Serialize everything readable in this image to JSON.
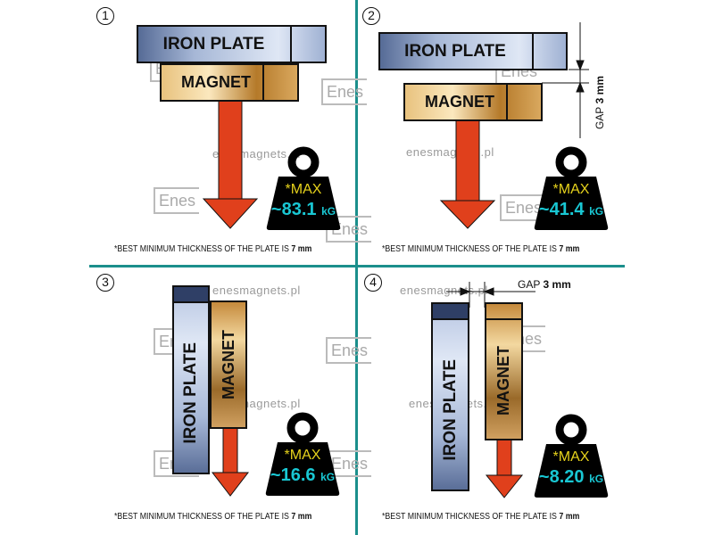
{
  "colors": {
    "divider": "#1b8f8c",
    "arrow": "#e0401c",
    "max_text": "#e6d21c",
    "value_text": "#19c7d3"
  },
  "watermark": {
    "url": "enesmagnets.pl",
    "logo": "Enes"
  },
  "panels": [
    {
      "number": "1",
      "iron_label": "IRON PLATE",
      "magnet_label": "MAGNET",
      "max_label": "*MAX",
      "value": "~83.1",
      "unit": "kG",
      "footnote": "*BEST MINIMUM THICKNESS OF THE PLATE IS",
      "footnote_bold": "7 mm"
    },
    {
      "number": "2",
      "iron_label": "IRON PLATE",
      "magnet_label": "MAGNET",
      "gap_label": "GAP",
      "gap_value": "3 mm",
      "max_label": "*MAX",
      "value": "~41.4",
      "unit": "kG",
      "footnote": "*BEST MINIMUM THICKNESS OF THE PLATE IS",
      "footnote_bold": "7 mm"
    },
    {
      "number": "3",
      "iron_label": "IRON  PLATE",
      "magnet_label": "MAGNET",
      "max_label": "*MAX",
      "value": "~16.6",
      "unit": "kG",
      "footnote": "*BEST MINIMUM THICKNESS OF THE PLATE IS",
      "footnote_bold": "7 mm"
    },
    {
      "number": "4",
      "iron_label": "IRON PLATE",
      "magnet_label": "MAGNET",
      "gap_label": "GAP",
      "gap_value": "3 mm",
      "max_label": "*MAX",
      "value": "~8.20",
      "unit": "kG",
      "footnote": "*BEST MINIMUM THICKNESS OF THE PLATE IS",
      "footnote_bold": "7 mm"
    }
  ]
}
